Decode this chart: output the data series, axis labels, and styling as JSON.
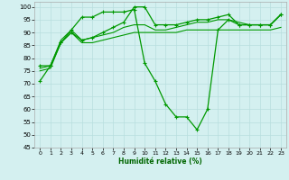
{
  "title": "",
  "xlabel": "Humidité relative (%)",
  "ylabel": "",
  "background_color": "#d4f0f0",
  "grid_color": "#b8dede",
  "line_color": "#009900",
  "marker": "+",
  "xlim": [
    -0.5,
    23.5
  ],
  "ylim": [
    45,
    102
  ],
  "yticks": [
    45,
    50,
    55,
    60,
    65,
    70,
    75,
    80,
    85,
    90,
    95,
    100
  ],
  "xticks": [
    0,
    1,
    2,
    3,
    4,
    5,
    6,
    7,
    8,
    9,
    10,
    11,
    12,
    13,
    14,
    15,
    16,
    17,
    18,
    19,
    20,
    21,
    22,
    23
  ],
  "series": [
    {
      "x": [
        0,
        1,
        2,
        3,
        4,
        5,
        6,
        7,
        8,
        9,
        10,
        11,
        12,
        13,
        14,
        15,
        16,
        17,
        18,
        19,
        20,
        21,
        22,
        23
      ],
      "y": [
        71,
        77,
        86,
        91,
        96,
        96,
        98,
        98,
        98,
        99,
        78,
        71,
        62,
        57,
        57,
        52,
        60,
        91,
        95,
        93,
        93,
        93,
        93,
        97
      ],
      "has_markers": true,
      "lw": 0.9
    },
    {
      "x": [
        0,
        1,
        2,
        3,
        4,
        5,
        6,
        7,
        8,
        9,
        10,
        11,
        12,
        13,
        14,
        15,
        16,
        17,
        18,
        19,
        20,
        21,
        22,
        23
      ],
      "y": [
        75,
        76,
        86,
        90,
        86,
        86,
        87,
        88,
        89,
        90,
        90,
        90,
        90,
        90,
        91,
        91,
        91,
        91,
        91,
        91,
        91,
        91,
        91,
        92
      ],
      "has_markers": false,
      "lw": 0.8
    },
    {
      "x": [
        0,
        1,
        2,
        3,
        4,
        5,
        6,
        7,
        8,
        9,
        10,
        11,
        12,
        13,
        14,
        15,
        16,
        17,
        18,
        19,
        20,
        21,
        22,
        23
      ],
      "y": [
        76,
        77,
        87,
        91,
        87,
        88,
        89,
        90,
        92,
        93,
        93,
        91,
        91,
        92,
        93,
        94,
        94,
        95,
        95,
        94,
        93,
        93,
        93,
        97
      ],
      "has_markers": false,
      "lw": 0.8
    },
    {
      "x": [
        0,
        1,
        2,
        3,
        4,
        5,
        6,
        7,
        8,
        9,
        10,
        11,
        12,
        13,
        14,
        15,
        16,
        17,
        18,
        19,
        20,
        21,
        22,
        23
      ],
      "y": [
        77,
        77,
        86,
        90,
        87,
        88,
        90,
        92,
        94,
        100,
        100,
        93,
        93,
        93,
        94,
        95,
        95,
        96,
        97,
        93,
        93,
        93,
        93,
        97
      ],
      "has_markers": true,
      "lw": 0.9
    }
  ]
}
